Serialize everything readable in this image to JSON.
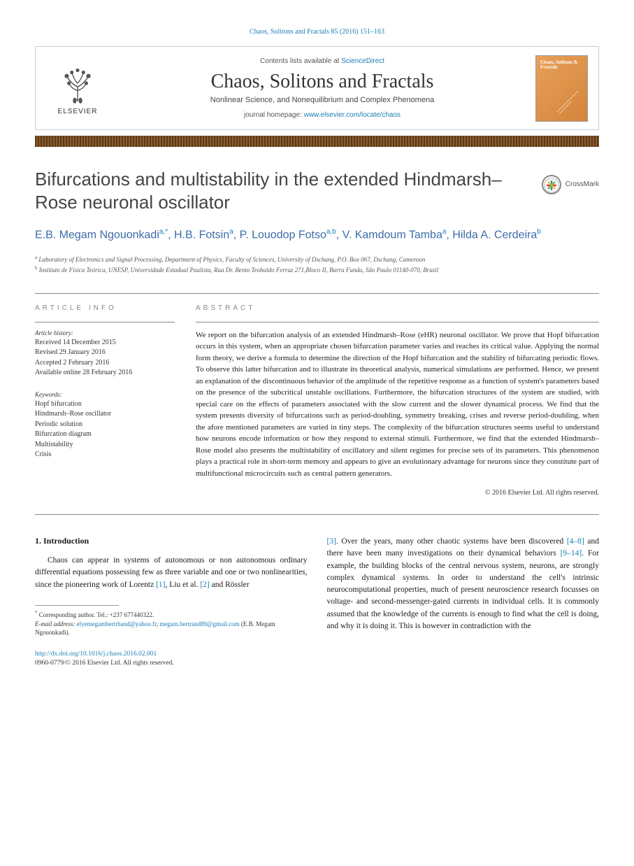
{
  "header": {
    "citation_prefix": "Chaos, Solitons and Fractals 85 (2016) 151–163",
    "contents_text": "Contents lists available at",
    "contents_link": "ScienceDirect",
    "journal_title": "Chaos, Solitons and Fractals",
    "journal_subtitle": "Nonlinear Science, and Nonequilibrium and Complex Phenomena",
    "homepage_label": "journal homepage:",
    "homepage_url": "www.elsevier.com/locate/chaos",
    "publisher_label": "ELSEVIER",
    "cover_title": "Chaos, Solitons & Fractals"
  },
  "article": {
    "title": "Bifurcations and multistability in the extended Hindmarsh–Rose neuronal oscillator",
    "crossmark": "CrossMark",
    "authors_html": "E.B. Megam Ngouonkadi<span class='sup'>a,*</span>, H.B. Fotsin<span class='sup'>a</span>, P. Louodop Fotso<span class='sup'>a,b</span>, V. Kamdoum Tamba<span class='sup'>a</span>, Hilda A. Cerdeira<span class='sup'>b</span>",
    "affiliations": [
      {
        "sup": "a",
        "text": "Laboratory of Electronics and Signal Processing, Department of Physics, Faculty of Sciences, University of Dschang, P.O. Box 067, Dschang, Cameroon"
      },
      {
        "sup": "b",
        "text": "Instituto de Física Teórica, UNESP, Universidade Estadual Paulista, Rua Dr. Bento Teobaldo Ferraz 271,Bloco II, Barra Funda, São Paulo 01140-070, Brazil"
      }
    ]
  },
  "info": {
    "label": "ARTICLE INFO",
    "history_label": "Article history:",
    "history": [
      "Received 14 December 2015",
      "Revised 29 January 2016",
      "Accepted 2 February 2016",
      "Available online 28 February 2016"
    ],
    "keywords_label": "Keywords:",
    "keywords": [
      "Hopf bifurcation",
      "Hindmarsh–Rose oscillator",
      "Periodic solution",
      "Bifurcation diagram",
      "Multistability",
      "Crisis"
    ]
  },
  "abstract": {
    "label": "ABSTRACT",
    "text": "We report on the bifurcation analysis of an extended Hindmarsh–Rose (eHR) neuronal oscillator. We prove that Hopf bifurcation occurs in this system, when an appropriate chosen bifurcation parameter varies and reaches its critical value. Applying the normal form theory, we derive a formula to determine the direction of the Hopf bifurcation and the stability of bifurcating periodic flows. To observe this latter bifurcation and to illustrate its theoretical analysis, numerical simulations are performed. Hence, we present an explanation of the discontinuous behavior of the amplitude of the repetitive response as a function of system's parameters based on the presence of the subcritical unstable oscillations. Furthermore, the bifurcation structures of the system are studied, with special care on the effects of parameters associated with the slow current and the slower dynamical process. We find that the system presents diversity of bifurcations such as period-doubling, symmetry breaking, crises and reverse period-doubling, when the afore mentioned parameters are varied in tiny steps. The complexity of the bifurcation structures seems useful to understand how neurons encode information or how they respond to external stimuli. Furthermore, we find that the extended Hindmarsh–Rose model also presents the multistability of oscillatory and silent regimes for precise sets of its parameters. This phenomenon plays a practical role in short-term memory and appears to give an evolutionary advantage for neurons since they constitute part of multifunctional microcircuits such as central pattern generators.",
    "copyright": "© 2016 Elsevier Ltd. All rights reserved."
  },
  "body": {
    "intro_heading": "1. Introduction",
    "col1_html": "Chaos can appear in systems of autonomous or non autonomous ordinary differential equations possessing few as three variable and one or two nonlinearities, since the pioneering work of Lorentz <a href='#'>[1]</a>, Liu et al. <a href='#'>[2]</a> and Rössler",
    "col2_html": "<a href='#'>[3]</a>. Over the years, many other chaotic systems have been discovered <a href='#'>[4–8]</a> and there have been many investigations on their dynamical behaviors <a href='#'>[9–14]</a>. For example, the building blocks of the central nervous system, neurons, are strongly complex dynamical systems. In order to understand the cell's intrinsic neurocomputational properties, much of present neuroscience research focusses on voltage- and second-messenger-gated currents in individual cells. It is commonly assumed that the knowledge of the currents is enough to find what the cell is doing, and why it is doing it. This is however in contradiction with the"
  },
  "footnote": {
    "corr_label": "Corresponding author. Tel.: +237 677440322.",
    "email_label": "E-mail address:",
    "email1": "elyemegambertrhand@yahoo.fr",
    "email2": "megam.bertrand89@gmail.com",
    "email_author": "(E.B. Megam Ngouonkadi).",
    "doi": "http://dx.doi.org/10.1016/j.chaos.2016.02.001",
    "issn_line": "0960-0779/© 2016 Elsevier Ltd. All rights reserved."
  },
  "colors": {
    "link": "#1a7db6",
    "author": "#3b6ca8",
    "stripe_dark": "#5b3a1a",
    "stripe_light": "#8a5c2e",
    "cover_grad_a": "#e8a05a",
    "cover_grad_b": "#d4843a"
  }
}
